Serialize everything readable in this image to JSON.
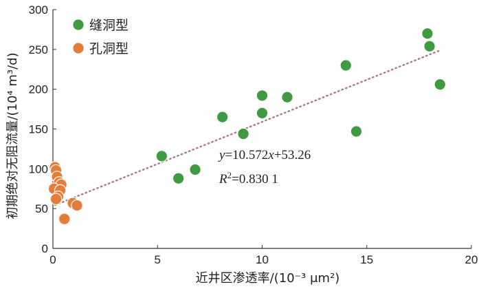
{
  "chart_data": {
    "type": "scatter",
    "title": "",
    "xlabel": "近井区渗透率/(10⁻³ μm²)",
    "ylabel": "初期绝对无阻流量/(10⁴ m³/d)",
    "xlim": [
      0,
      20
    ],
    "ylim": [
      0,
      300
    ],
    "xticks": [
      0,
      5,
      10,
      15,
      20
    ],
    "yticks": [
      0,
      50,
      100,
      150,
      200,
      250,
      300
    ],
    "grid": false,
    "legend_position": "top-left",
    "series": [
      {
        "name": "缝洞型",
        "color": "#3f9a42",
        "points": [
          [
            5.2,
            116
          ],
          [
            6.0,
            88
          ],
          [
            6.8,
            99
          ],
          [
            8.1,
            165
          ],
          [
            9.1,
            144
          ],
          [
            10.0,
            192
          ],
          [
            10.0,
            170
          ],
          [
            11.2,
            190
          ],
          [
            14.0,
            230
          ],
          [
            14.5,
            147
          ],
          [
            17.9,
            270
          ],
          [
            18.0,
            254
          ],
          [
            18.5,
            206
          ]
        ]
      },
      {
        "name": "孔洞型",
        "color": "#e47c3a",
        "points": [
          [
            0.1,
            102
          ],
          [
            0.15,
            98
          ],
          [
            0.2,
            90
          ],
          [
            0.3,
            83
          ],
          [
            0.4,
            80
          ],
          [
            0.05,
            75
          ],
          [
            0.35,
            73
          ],
          [
            0.25,
            65
          ],
          [
            0.15,
            62
          ],
          [
            0.95,
            57
          ],
          [
            1.15,
            54
          ],
          [
            0.55,
            37
          ]
        ]
      }
    ],
    "trendline": {
      "slope": 10.572,
      "intercept": 53.26,
      "x_range": [
        0.1,
        18.5
      ],
      "color": "#b07a78",
      "equation_y": "y",
      "equation_rest": "=10.572",
      "equation_x": "x",
      "equation_tail": "+53.26",
      "r2_prefix": "R",
      "r2_sup": "2",
      "r2_value": "=0.830 1"
    }
  }
}
